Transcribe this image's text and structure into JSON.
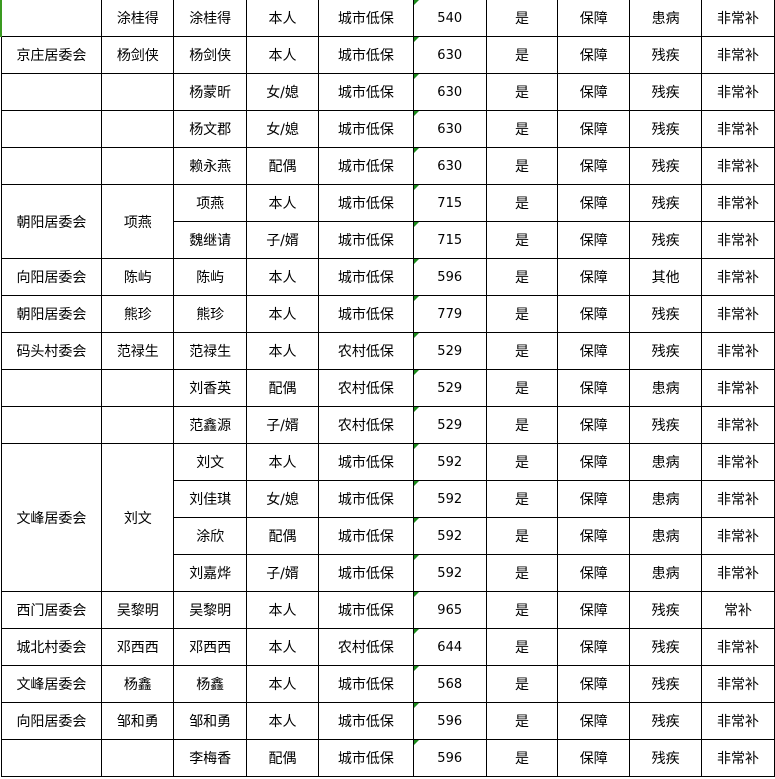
{
  "colors": {
    "marker": "#1a8a1a",
    "grid": "#000000"
  },
  "rows": [
    [
      "",
      "涂桂得",
      "涂桂得",
      "本人",
      "城市低保",
      "540",
      "是",
      "保障",
      "患病",
      "非常补"
    ],
    [
      "京庄居委会",
      "杨剑侠",
      "杨剑侠",
      "本人",
      "城市低保",
      "630",
      "是",
      "保障",
      "残疾",
      "非常补"
    ],
    [
      "",
      "",
      "杨蒙昕",
      "女/媳",
      "城市低保",
      "630",
      "是",
      "保障",
      "残疾",
      "非常补"
    ],
    [
      "",
      "",
      "杨文郡",
      "女/媳",
      "城市低保",
      "630",
      "是",
      "保障",
      "残疾",
      "非常补"
    ],
    [
      "",
      "",
      "赖永燕",
      "配偶",
      "城市低保",
      "630",
      "是",
      "保障",
      "残疾",
      "非常补"
    ],
    [
      "朝阳居委会",
      "项燕",
      "项燕",
      "本人",
      "城市低保",
      "715",
      "是",
      "保障",
      "残疾",
      "非常补"
    ],
    [
      null,
      null,
      "魏继请",
      "子/婿",
      "城市低保",
      "715",
      "是",
      "保障",
      "残疾",
      "非常补"
    ],
    [
      "向阳居委会",
      "陈屿",
      "陈屿",
      "本人",
      "城市低保",
      "596",
      "是",
      "保障",
      "其他",
      "非常补"
    ],
    [
      "朝阳居委会",
      "熊珍",
      "熊珍",
      "本人",
      "城市低保",
      "779",
      "是",
      "保障",
      "残疾",
      "非常补"
    ],
    [
      "码头村委会",
      "范禄生",
      "范禄生",
      "本人",
      "农村低保",
      "529",
      "是",
      "保障",
      "残疾",
      "非常补"
    ],
    [
      "",
      "",
      "刘香英",
      "配偶",
      "农村低保",
      "529",
      "是",
      "保障",
      "患病",
      "非常补"
    ],
    [
      "",
      "",
      "范鑫源",
      "子/婿",
      "农村低保",
      "529",
      "是",
      "保障",
      "残疾",
      "非常补"
    ],
    [
      "文峰居委会",
      "刘文",
      "刘文",
      "本人",
      "城市低保",
      "592",
      "是",
      "保障",
      "患病",
      "非常补"
    ],
    [
      null,
      null,
      "刘佳琪",
      "女/媳",
      "城市低保",
      "592",
      "是",
      "保障",
      "患病",
      "非常补"
    ],
    [
      null,
      null,
      "涂欣",
      "配偶",
      "城市低保",
      "592",
      "是",
      "保障",
      "患病",
      "非常补"
    ],
    [
      null,
      null,
      "刘嘉烨",
      "子/婿",
      "城市低保",
      "592",
      "是",
      "保障",
      "患病",
      "非常补"
    ],
    [
      "西门居委会",
      "吴黎明",
      "吴黎明",
      "本人",
      "城市低保",
      "965",
      "是",
      "保障",
      "残疾",
      "常补"
    ],
    [
      "城北村委会",
      "邓西西",
      "邓西西",
      "本人",
      "农村低保",
      "644",
      "是",
      "保障",
      "残疾",
      "非常补"
    ],
    [
      "文峰居委会",
      "杨鑫",
      "杨鑫",
      "本人",
      "城市低保",
      "568",
      "是",
      "保障",
      "残疾",
      "非常补"
    ],
    [
      "向阳居委会",
      "邹和勇",
      "邹和勇",
      "本人",
      "城市低保",
      "596",
      "是",
      "保障",
      "残疾",
      "非常补"
    ],
    [
      "",
      "",
      "李梅香",
      "配偶",
      "城市低保",
      "596",
      "是",
      "保障",
      "残疾",
      "非常补"
    ]
  ],
  "rowspans": {
    "5": 2,
    "12": 4
  }
}
